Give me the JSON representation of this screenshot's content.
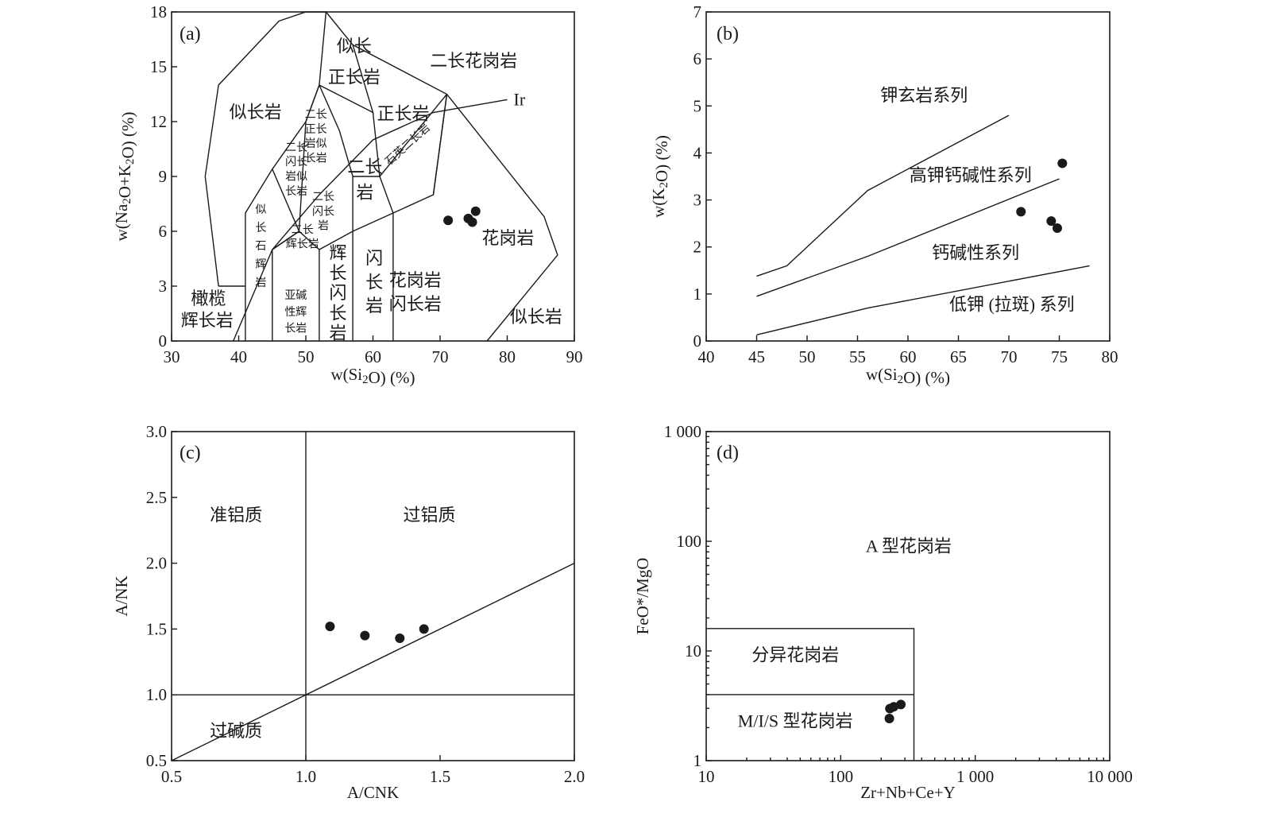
{
  "chart_data": [
    {
      "type": "scatter",
      "panel_label": "(a)",
      "xlabel": "w(Si₂O) (%)",
      "ylabel": "w(Na₂O+K₂O) (%)",
      "xlim": [
        30,
        90
      ],
      "ylim": [
        0,
        18
      ],
      "x_ticks": [
        "30",
        "40",
        "50",
        "60",
        "70",
        "80",
        "90"
      ],
      "y_ticks": [
        "0",
        "3",
        "6",
        "9",
        "12",
        "15",
        "18"
      ],
      "boundaries": [
        [
          [
            37,
            3
          ],
          [
            35,
            9
          ],
          [
            37,
            14
          ],
          [
            46,
            17.5
          ],
          [
            50,
            18
          ],
          [
            53,
            18
          ],
          [
            57,
            16.2
          ],
          [
            71,
            13.5
          ],
          [
            85.5,
            6.8
          ],
          [
            87.5,
            4.7
          ],
          [
            77,
            0
          ]
        ],
        [
          [
            41,
            3
          ],
          [
            37,
            3
          ]
        ],
        [
          [
            41,
            0
          ],
          [
            41,
            7
          ],
          [
            45,
            9.4
          ],
          [
            50,
            12
          ],
          [
            52,
            14
          ],
          [
            53,
            18
          ]
        ],
        [
          [
            45,
            0
          ],
          [
            45,
            5
          ],
          [
            49,
            6
          ]
        ],
        [
          [
            49,
            6
          ],
          [
            52,
            5
          ],
          [
            57,
            6
          ],
          [
            63,
            7
          ],
          [
            69,
            8
          ],
          [
            71,
            13.5
          ]
        ],
        [
          [
            52,
            0
          ],
          [
            52,
            5
          ]
        ],
        [
          [
            57,
            0
          ],
          [
            57,
            6
          ]
        ],
        [
          [
            63,
            0
          ],
          [
            63,
            7
          ]
        ],
        [
          [
            45,
            9.4
          ],
          [
            49,
            6
          ]
        ],
        [
          [
            45,
            5
          ],
          [
            49,
            6
          ]
        ],
        [
          [
            50,
            12
          ],
          [
            52,
            14
          ],
          [
            60,
            12.5
          ],
          [
            57,
            16.2
          ]
        ],
        [
          [
            60,
            12.5
          ],
          [
            61,
            9
          ],
          [
            63,
            7
          ]
        ],
        [
          [
            61,
            9
          ],
          [
            71,
            13.5
          ]
        ],
        [
          [
            52,
            14
          ],
          [
            55,
            11.5
          ],
          [
            57,
            9
          ],
          [
            57,
            6
          ]
        ],
        [
          [
            49,
            6
          ],
          [
            50,
            12
          ]
        ],
        [
          [
            57,
            9
          ],
          [
            61,
            9
          ]
        ],
        [
          [
            69,
            8
          ],
          [
            71,
            13.5
          ]
        ]
      ],
      "ir_line": [
        [
          39.2,
          0
        ],
        [
          45,
          5
        ],
        [
          52,
          8
        ],
        [
          60,
          11
        ],
        [
          69,
          12.5
        ],
        [
          80,
          13.2
        ]
      ],
      "regions": [
        {
          "label": "似长",
          "x": 57.2,
          "y": 15.8,
          "size": "lg"
        },
        {
          "label": "正长岩",
          "x": 57.2,
          "y": 14.1,
          "size": "lg"
        },
        {
          "label": "二长花岗岩",
          "x": 75,
          "y": 15,
          "size": "lg"
        },
        {
          "label": "似长岩",
          "x": 42.5,
          "y": 12.2,
          "size": "lg"
        },
        {
          "label": "正长岩",
          "x": 64.5,
          "y": 12.1,
          "size": "lg"
        },
        {
          "label": "二长",
          "x": 58.8,
          "y": 9.2,
          "size": "lg"
        },
        {
          "label": "岩",
          "x": 58.8,
          "y": 7.8,
          "size": "lg"
        },
        {
          "label": "花岗岩",
          "x": 80.1,
          "y": 5.3,
          "size": "lg"
        },
        {
          "label": "闪",
          "x": 60.2,
          "y": 4.2,
          "size": "lg"
        },
        {
          "label": "长",
          "x": 60.2,
          "y": 2.9,
          "size": "lg"
        },
        {
          "label": "岩",
          "x": 60.2,
          "y": 1.6,
          "size": "lg"
        },
        {
          "label": "花岗岩",
          "x": 66.3,
          "y": 3,
          "size": "lg"
        },
        {
          "label": "闪长岩",
          "x": 66.3,
          "y": 1.7,
          "size": "lg"
        },
        {
          "label": "辉",
          "x": 54.8,
          "y": 4.5,
          "size": "lg"
        },
        {
          "label": "长",
          "x": 54.8,
          "y": 3.4,
          "size": "lg"
        },
        {
          "label": "闪",
          "x": 54.8,
          "y": 2.3,
          "size": "lg"
        },
        {
          "label": "长",
          "x": 54.8,
          "y": 1.2,
          "size": "lg"
        },
        {
          "label": "岩",
          "x": 54.8,
          "y": 0.1,
          "size": "lg"
        },
        {
          "label": "似长岩",
          "x": 84.3,
          "y": 1,
          "size": "lg"
        },
        {
          "label": "橄榄",
          "x": 35.5,
          "y": 2,
          "size": "lg"
        },
        {
          "label": "辉长岩",
          "x": 35.3,
          "y": 0.8,
          "size": "lg"
        },
        {
          "label": "二长",
          "x": 51.5,
          "y": 12.2,
          "size": "sm"
        },
        {
          "label": "正长",
          "x": 51.5,
          "y": 11.4,
          "size": "sm"
        },
        {
          "label": "岩似",
          "x": 51.5,
          "y": 10.6,
          "size": "sm"
        },
        {
          "label": "长岩",
          "x": 51.5,
          "y": 9.8,
          "size": "sm"
        },
        {
          "label": "二长",
          "x": 48.6,
          "y": 10.4,
          "size": "sm"
        },
        {
          "label": "闪长",
          "x": 48.6,
          "y": 9.6,
          "size": "sm"
        },
        {
          "label": "岩似",
          "x": 48.6,
          "y": 8.8,
          "size": "sm"
        },
        {
          "label": "长岩",
          "x": 48.6,
          "y": 8,
          "size": "sm"
        },
        {
          "label": "二长",
          "x": 52.6,
          "y": 7.7,
          "size": "sm"
        },
        {
          "label": "闪长",
          "x": 52.6,
          "y": 6.9,
          "size": "sm"
        },
        {
          "label": "岩",
          "x": 52.6,
          "y": 6.1,
          "size": "sm"
        },
        {
          "label": "二长",
          "x": 49.5,
          "y": 5.9,
          "size": "xs"
        },
        {
          "label": "辉长岩",
          "x": 49.5,
          "y": 5.1,
          "size": "xs"
        },
        {
          "label": "似",
          "x": 43.3,
          "y": 7,
          "size": "sm"
        },
        {
          "label": "长",
          "x": 43.3,
          "y": 6,
          "size": "sm"
        },
        {
          "label": "石",
          "x": 43.3,
          "y": 5,
          "size": "sm"
        },
        {
          "label": "辉",
          "x": 43.3,
          "y": 4,
          "size": "sm"
        },
        {
          "label": "岩",
          "x": 43.3,
          "y": 3,
          "size": "sm"
        },
        {
          "label": "亚碱",
          "x": 48.5,
          "y": 2.3,
          "size": "sm"
        },
        {
          "label": "性辉",
          "x": 48.5,
          "y": 1.4,
          "size": "sm"
        },
        {
          "label": "长岩",
          "x": 48.5,
          "y": 0.5,
          "size": "sm"
        }
      ],
      "rotated_label": {
        "label": "石英二长岩",
        "x": 65.5,
        "y": 10.6,
        "angle": -42
      },
      "ir_label": "Ir",
      "points": [
        [
          71.2,
          6.6
        ],
        [
          74.2,
          6.7
        ],
        [
          74.8,
          6.5
        ],
        [
          75.3,
          7.1
        ]
      ]
    },
    {
      "type": "scatter",
      "panel_label": "(b)",
      "xlabel": "w(Si₂O) (%)",
      "ylabel": "w(K₂O) (%)",
      "xlim": [
        40,
        80
      ],
      "ylim": [
        0,
        7
      ],
      "x_ticks": [
        "40",
        "45",
        "50",
        "55",
        "60",
        "65",
        "70",
        "75",
        "80"
      ],
      "y_ticks": [
        "0",
        "1",
        "2",
        "3",
        "4",
        "5",
        "6",
        "7"
      ],
      "boundaries": [
        [
          [
            45,
            1.38
          ],
          [
            48,
            1.6
          ],
          [
            56,
            3.2
          ],
          [
            70,
            4.8
          ]
        ],
        [
          [
            45,
            0.95
          ],
          [
            56,
            1.8
          ],
          [
            75,
            3.45
          ]
        ],
        [
          [
            45,
            0.13
          ],
          [
            56,
            0.7
          ],
          [
            78,
            1.6
          ]
        ]
      ],
      "regions": [
        {
          "label": "钾玄岩系列",
          "x": 61.6,
          "y": 5.1
        },
        {
          "label": "高钾钙碱性系列",
          "x": 66.2,
          "y": 3.4
        },
        {
          "label": "钙碱性系列",
          "x": 66.7,
          "y": 1.75
        },
        {
          "label": "低钾 (拉斑) 系列",
          "x": 70.3,
          "y": 0.65
        }
      ],
      "points": [
        [
          71.2,
          2.75
        ],
        [
          74.2,
          2.55
        ],
        [
          74.8,
          2.4
        ],
        [
          75.3,
          3.78
        ]
      ]
    },
    {
      "type": "scatter",
      "panel_label": "(c)",
      "xlabel": "A/CNK",
      "ylabel": "A/NK",
      "xlim": [
        0.5,
        2.0
      ],
      "ylim": [
        0.5,
        3.0
      ],
      "x_ticks": [
        "0.5",
        "1.0",
        "1.5",
        "2.0"
      ],
      "y_ticks": [
        "0.5",
        "1.0",
        "1.5",
        "2.0",
        "2.5",
        "3.0"
      ],
      "boundaries": [
        [
          [
            1.0,
            0.5
          ],
          [
            1.0,
            3.0
          ]
        ],
        [
          [
            0.5,
            1.0
          ],
          [
            2.0,
            1.0
          ]
        ],
        [
          [
            0.5,
            0.5
          ],
          [
            2.0,
            2.0
          ]
        ]
      ],
      "regions": [
        {
          "label": "准铝质",
          "x": 0.74,
          "y": 2.32
        },
        {
          "label": "过铝质",
          "x": 1.46,
          "y": 2.32
        },
        {
          "label": "过碱质",
          "x": 0.74,
          "y": 0.68
        }
      ],
      "points": [
        [
          1.09,
          1.52
        ],
        [
          1.22,
          1.45
        ],
        [
          1.35,
          1.43
        ],
        [
          1.44,
          1.5
        ]
      ]
    },
    {
      "type": "scatter",
      "panel_label": "(d)",
      "xlabel": "Zr+Nb+Ce+Y",
      "ylabel": "FeO*/MgO",
      "xscale": "log",
      "yscale": "log",
      "xlim": [
        10,
        10000
      ],
      "ylim": [
        1,
        1000
      ],
      "x_ticks": [
        "10",
        "100",
        "1 000",
        "10 000"
      ],
      "y_ticks": [
        "1",
        "10",
        "100",
        "1 000"
      ],
      "boundaries": [
        [
          [
            10,
            16
          ],
          [
            350,
            16
          ],
          [
            350,
            1
          ]
        ],
        [
          [
            10,
            4
          ],
          [
            350,
            4
          ]
        ]
      ],
      "regions": [
        {
          "label": "A 型花岗岩",
          "x": 320,
          "y": 80
        },
        {
          "label": "分异花岗岩",
          "x": 46,
          "y": 8.1
        },
        {
          "label": "M/I/S 型花岗岩",
          "x": 46,
          "y": 2.03
        }
      ],
      "points": [
        [
          230,
          2.42
        ],
        [
          232,
          2.98
        ],
        [
          248,
          3.1
        ],
        [
          280,
          3.25
        ]
      ]
    }
  ]
}
